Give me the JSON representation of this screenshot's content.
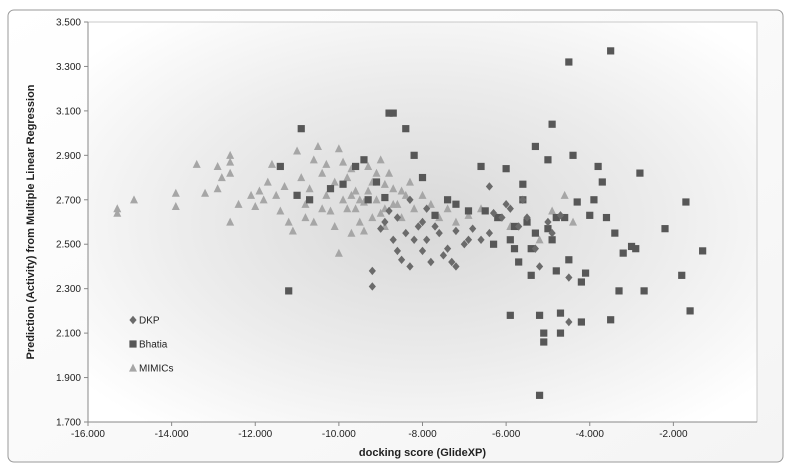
{
  "chart_data": {
    "type": "scatter",
    "title": "",
    "xlabel": "docking score (GlideXP)",
    "ylabel": "Prediction (Activity) from Multiple Linear Regression",
    "xlim": [
      -16,
      0
    ],
    "ylim": [
      1.7,
      3.5
    ],
    "x_ticks": [
      "-16.000",
      "-14.000",
      "-12.000",
      "-10.000",
      "-8.000",
      "-6.000",
      "-4.000",
      "-2.000"
    ],
    "y_ticks": [
      "1.700",
      "1.900",
      "2.100",
      "2.300",
      "2.500",
      "2.700",
      "2.900",
      "3.100",
      "3.300",
      "3.500"
    ],
    "legend_position": "left-bottom",
    "grid": false,
    "series": [
      {
        "name": "DKP",
        "marker": "diamond",
        "color": "#6b6b6b",
        "points": [
          [
            -9.2,
            2.31
          ],
          [
            -9.2,
            2.38
          ],
          [
            -8.7,
            2.52
          ],
          [
            -8.6,
            2.47
          ],
          [
            -8.5,
            2.43
          ],
          [
            -8.3,
            2.4
          ],
          [
            -8.2,
            2.52
          ],
          [
            -8.0,
            2.47
          ],
          [
            -7.8,
            2.42
          ],
          [
            -7.6,
            2.55
          ],
          [
            -7.4,
            2.48
          ],
          [
            -7.3,
            2.42
          ],
          [
            -7.2,
            2.4
          ],
          [
            -7.0,
            2.5
          ],
          [
            -6.8,
            2.57
          ],
          [
            -6.6,
            2.52
          ],
          [
            -6.4,
            2.55
          ],
          [
            -6.3,
            2.64
          ],
          [
            -6.1,
            2.62
          ],
          [
            -5.9,
            2.66
          ],
          [
            -5.7,
            2.58
          ],
          [
            -5.5,
            2.62
          ],
          [
            -5.3,
            2.48
          ],
          [
            -5.2,
            2.4
          ],
          [
            -5.0,
            2.6
          ],
          [
            -4.9,
            2.55
          ],
          [
            -4.7,
            2.63
          ],
          [
            -4.5,
            2.35
          ],
          [
            -4.5,
            2.15
          ],
          [
            -5.6,
            2.7
          ],
          [
            -6.0,
            2.68
          ],
          [
            -6.4,
            2.76
          ],
          [
            -8.9,
            2.6
          ],
          [
            -8.4,
            2.55
          ],
          [
            -8.1,
            2.58
          ],
          [
            -7.9,
            2.52
          ],
          [
            -7.5,
            2.45
          ],
          [
            -7.2,
            2.56
          ],
          [
            -6.9,
            2.52
          ],
          [
            -8.8,
            2.65
          ],
          [
            -9.0,
            2.57
          ],
          [
            -8.0,
            2.6
          ],
          [
            -7.7,
            2.58
          ],
          [
            -8.6,
            2.62
          ],
          [
            -8.3,
            2.7
          ],
          [
            -7.9,
            2.66
          ]
        ]
      },
      {
        "name": "Bhatia",
        "marker": "square",
        "color": "#575757",
        "points": [
          [
            -11.2,
            2.29
          ],
          [
            -11.4,
            2.85
          ],
          [
            -11.0,
            2.72
          ],
          [
            -10.9,
            3.02
          ],
          [
            -10.7,
            2.7
          ],
          [
            -9.9,
            2.77
          ],
          [
            -9.6,
            2.85
          ],
          [
            -9.3,
            2.7
          ],
          [
            -9.1,
            2.78
          ],
          [
            -8.9,
            2.71
          ],
          [
            -8.8,
            3.09
          ],
          [
            -8.7,
            3.09
          ],
          [
            -8.4,
            3.02
          ],
          [
            -8.2,
            2.9
          ],
          [
            -8.0,
            2.8
          ],
          [
            -7.7,
            2.63
          ],
          [
            -7.4,
            2.7
          ],
          [
            -7.2,
            2.68
          ],
          [
            -6.9,
            2.65
          ],
          [
            -6.6,
            2.85
          ],
          [
            -6.2,
            2.62
          ],
          [
            -6.0,
            2.84
          ],
          [
            -5.9,
            2.18
          ],
          [
            -5.9,
            2.52
          ],
          [
            -5.8,
            2.48
          ],
          [
            -5.7,
            2.42
          ],
          [
            -5.6,
            2.77
          ],
          [
            -5.5,
            2.6
          ],
          [
            -5.4,
            2.48
          ],
          [
            -5.4,
            2.36
          ],
          [
            -5.3,
            2.55
          ],
          [
            -5.3,
            2.94
          ],
          [
            -5.2,
            2.18
          ],
          [
            -5.2,
            1.82
          ],
          [
            -5.1,
            2.1
          ],
          [
            -5.1,
            2.06
          ],
          [
            -5.0,
            2.88
          ],
          [
            -5.0,
            2.57
          ],
          [
            -4.9,
            3.04
          ],
          [
            -4.9,
            2.52
          ],
          [
            -4.8,
            2.62
          ],
          [
            -4.8,
            2.38
          ],
          [
            -4.7,
            2.19
          ],
          [
            -4.7,
            2.1
          ],
          [
            -4.6,
            2.62
          ],
          [
            -4.5,
            2.43
          ],
          [
            -4.5,
            3.32
          ],
          [
            -4.4,
            2.9
          ],
          [
            -4.3,
            2.69
          ],
          [
            -4.2,
            2.33
          ],
          [
            -4.2,
            2.15
          ],
          [
            -4.1,
            2.37
          ],
          [
            -4.0,
            2.63
          ],
          [
            -3.9,
            2.7
          ],
          [
            -3.8,
            2.85
          ],
          [
            -3.7,
            2.78
          ],
          [
            -3.6,
            2.62
          ],
          [
            -3.5,
            3.37
          ],
          [
            -3.5,
            2.16
          ],
          [
            -3.4,
            2.55
          ],
          [
            -3.3,
            2.29
          ],
          [
            -3.2,
            2.46
          ],
          [
            -3.0,
            2.49
          ],
          [
            -2.9,
            2.48
          ],
          [
            -2.8,
            2.82
          ],
          [
            -2.7,
            2.29
          ],
          [
            -2.2,
            2.57
          ],
          [
            -1.8,
            2.36
          ],
          [
            -1.7,
            2.69
          ],
          [
            -1.6,
            2.2
          ],
          [
            -1.3,
            2.47
          ],
          [
            -6.5,
            2.65
          ],
          [
            -5.6,
            2.7
          ],
          [
            -5.8,
            2.58
          ],
          [
            -6.3,
            2.5
          ],
          [
            -10.2,
            2.75
          ],
          [
            -9.4,
            2.88
          ]
        ]
      },
      {
        "name": "MIMICs",
        "marker": "triangle",
        "color": "#a6a6a6",
        "points": [
          [
            -15.3,
            2.66
          ],
          [
            -15.3,
            2.64
          ],
          [
            -14.9,
            2.7
          ],
          [
            -13.9,
            2.73
          ],
          [
            -13.9,
            2.67
          ],
          [
            -13.4,
            2.86
          ],
          [
            -13.2,
            2.73
          ],
          [
            -12.9,
            2.75
          ],
          [
            -12.9,
            2.85
          ],
          [
            -12.8,
            2.8
          ],
          [
            -12.6,
            2.9
          ],
          [
            -12.6,
            2.87
          ],
          [
            -12.6,
            2.82
          ],
          [
            -12.6,
            2.6
          ],
          [
            -12.1,
            2.72
          ],
          [
            -12.0,
            2.67
          ],
          [
            -11.9,
            2.74
          ],
          [
            -11.7,
            2.78
          ],
          [
            -11.6,
            2.86
          ],
          [
            -11.5,
            2.72
          ],
          [
            -11.4,
            2.65
          ],
          [
            -11.2,
            2.6
          ],
          [
            -11.1,
            2.56
          ],
          [
            -11.0,
            2.92
          ],
          [
            -10.9,
            2.8
          ],
          [
            -10.8,
            2.68
          ],
          [
            -10.7,
            2.75
          ],
          [
            -10.6,
            2.88
          ],
          [
            -10.5,
            2.94
          ],
          [
            -10.4,
            2.82
          ],
          [
            -10.3,
            2.72
          ],
          [
            -10.2,
            2.65
          ],
          [
            -10.1,
            2.58
          ],
          [
            -10.0,
            2.93
          ],
          [
            -9.9,
            2.87
          ],
          [
            -9.8,
            2.8
          ],
          [
            -9.7,
            2.72
          ],
          [
            -9.6,
            2.66
          ],
          [
            -9.5,
            2.6
          ],
          [
            -9.4,
            2.56
          ],
          [
            -9.3,
            2.85
          ],
          [
            -9.2,
            2.78
          ],
          [
            -9.1,
            2.7
          ],
          [
            -9.0,
            2.64
          ],
          [
            -8.9,
            2.58
          ],
          [
            -8.8,
            2.82
          ],
          [
            -8.7,
            2.75
          ],
          [
            -8.6,
            2.68
          ],
          [
            -8.5,
            2.62
          ],
          [
            -8.4,
            2.72
          ],
          [
            -8.3,
            2.78
          ],
          [
            -8.2,
            2.66
          ],
          [
            -8.0,
            2.72
          ],
          [
            -7.8,
            2.68
          ],
          [
            -7.6,
            2.62
          ],
          [
            -7.4,
            2.66
          ],
          [
            -7.2,
            2.6
          ],
          [
            -6.9,
            2.63
          ],
          [
            -6.6,
            2.66
          ],
          [
            -6.2,
            2.62
          ],
          [
            -5.9,
            2.58
          ],
          [
            -5.5,
            2.6
          ],
          [
            -5.2,
            2.52
          ],
          [
            -4.9,
            2.65
          ],
          [
            -4.6,
            2.72
          ],
          [
            -4.4,
            2.6
          ],
          [
            -10.0,
            2.46
          ],
          [
            -9.7,
            2.55
          ],
          [
            -9.5,
            2.7
          ],
          [
            -9.3,
            2.74
          ],
          [
            -9.1,
            2.82
          ],
          [
            -8.9,
            2.77
          ],
          [
            -9.8,
            2.66
          ],
          [
            -9.6,
            2.74
          ],
          [
            -10.4,
            2.66
          ],
          [
            -10.6,
            2.6
          ],
          [
            -9.0,
            2.88
          ],
          [
            -8.7,
            2.68
          ],
          [
            -9.2,
            2.62
          ],
          [
            -9.4,
            2.69
          ],
          [
            -10.1,
            2.78
          ],
          [
            -10.3,
            2.86
          ],
          [
            -9.9,
            2.7
          ],
          [
            -9.7,
            2.84
          ],
          [
            -8.9,
            2.66
          ],
          [
            -8.5,
            2.74
          ],
          [
            -12.4,
            2.68
          ],
          [
            -11.8,
            2.7
          ],
          [
            -11.3,
            2.76
          ],
          [
            -10.8,
            2.62
          ]
        ]
      }
    ]
  }
}
